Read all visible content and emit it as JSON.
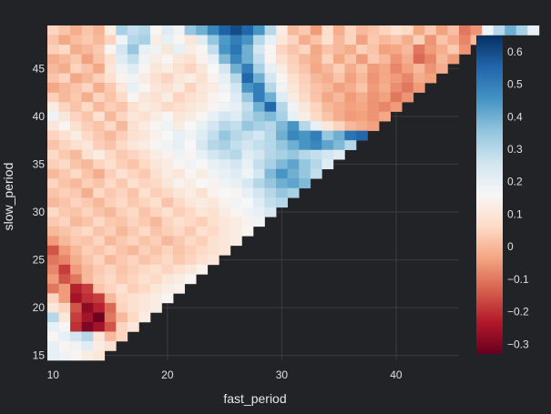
{
  "chart_data": {
    "type": "heatmap",
    "xlabel": "fast_period",
    "ylabel": "slow_period",
    "xlim": [
      10,
      45
    ],
    "ylim": [
      15,
      49
    ],
    "x_ticks": [
      10,
      20,
      30,
      40
    ],
    "y_ticks": [
      15,
      20,
      25,
      30,
      35,
      40,
      45
    ],
    "cell_rule": "z defined where fast_period < slow_period",
    "colorbar": {
      "range": [
        -0.33,
        0.65
      ],
      "ticks": [
        -0.3,
        -0.2,
        -0.1,
        0,
        0.1,
        0.2,
        0.3,
        0.4,
        0.5,
        0.6
      ],
      "tick_labels": [
        "−0.3",
        "−0.2",
        "−0.1",
        "0",
        "0.1",
        "0.2",
        "0.3",
        "0.4",
        "0.5",
        "0.6"
      ],
      "colorscale": [
        [
          0.0,
          "#67001f"
        ],
        [
          0.1,
          "#b2182b"
        ],
        [
          0.2,
          "#d6604d"
        ],
        [
          0.3,
          "#f4a582"
        ],
        [
          0.4,
          "#fddbc7"
        ],
        [
          0.5,
          "#f7f7f7"
        ],
        [
          0.6,
          "#d1e5f0"
        ],
        [
          0.7,
          "#92c5de"
        ],
        [
          0.8,
          "#4393c3"
        ],
        [
          0.9,
          "#2166ac"
        ],
        [
          1.0,
          "#053061"
        ]
      ]
    },
    "rows": [
      {
        "y": 49,
        "z": [
          0.05,
          0.02,
          -0.02,
          0.02,
          -0.01,
          0.12,
          0.32,
          0.28,
          0.3,
          0.15,
          0.22,
          0.18,
          0.35,
          0.4,
          0.48,
          0.56,
          0.6,
          0.55,
          0.45,
          0.3,
          0.12,
          0.0,
          0.03,
          -0.05,
          0.07,
          -0.02,
          0.05,
          0.0,
          0.02,
          0.05,
          0.08,
          0.06,
          -0.03,
          0.03,
          -0.04,
          0.01,
          -0.1,
          -0.06,
          0.18,
          0.3,
          0.4,
          0.32,
          0.2
        ]
      },
      {
        "y": 48,
        "z": [
          0.02,
          -0.03,
          0.01,
          0.03,
          0.0,
          0.05,
          0.18,
          0.3,
          0.32,
          0.12,
          0.2,
          0.15,
          0.1,
          0.22,
          0.35,
          0.44,
          0.5,
          0.45,
          0.3,
          0.2,
          0.1,
          0.05,
          -0.02,
          0.02,
          0.08,
          0.0,
          0.05,
          -0.04,
          0.03,
          0.0,
          0.02,
          -0.02,
          0.04,
          -0.06,
          0.02,
          -0.02,
          -0.08,
          0.0
        ]
      },
      {
        "y": 47,
        "z": [
          0.04,
          0.06,
          -0.02,
          0.0,
          0.03,
          0.15,
          0.25,
          0.35,
          0.2,
          0.18,
          0.1,
          0.2,
          0.12,
          0.15,
          0.28,
          0.45,
          0.52,
          0.4,
          0.25,
          0.15,
          0.05,
          0.02,
          0.05,
          -0.03,
          0.02,
          0.0,
          -0.02,
          0.04,
          0.02,
          -0.04,
          -0.03,
          0.0,
          -0.1,
          -0.05,
          -0.02,
          0.03,
          -0.06
        ]
      },
      {
        "y": 46,
        "z": [
          -0.02,
          0.0,
          0.03,
          -0.04,
          0.02,
          0.08,
          0.22,
          0.28,
          0.18,
          0.12,
          0.15,
          0.1,
          0.08,
          0.14,
          0.2,
          0.38,
          0.48,
          0.4,
          0.28,
          0.15,
          0.08,
          0.04,
          0.0,
          -0.02,
          0.05,
          -0.03,
          0.02,
          -0.05,
          0.03,
          0.0,
          -0.06,
          -0.02,
          -0.12,
          -0.08,
          0.0,
          -0.05
        ]
      },
      {
        "y": 45,
        "z": [
          0.0,
          -0.02,
          0.05,
          0.02,
          -0.03,
          0.1,
          0.18,
          0.22,
          0.15,
          0.1,
          0.12,
          0.08,
          0.05,
          0.1,
          0.16,
          0.25,
          0.4,
          0.5,
          0.32,
          0.2,
          0.12,
          0.05,
          0.02,
          -0.03,
          0.0,
          0.04,
          -0.02,
          0.02,
          -0.05,
          -0.03,
          -0.08,
          -0.04,
          0.0,
          -0.06,
          -0.02
        ]
      },
      {
        "y": 44,
        "z": [
          0.02,
          0.05,
          -0.03,
          0.0,
          0.04,
          0.08,
          0.14,
          0.18,
          0.12,
          0.08,
          0.05,
          0.1,
          0.12,
          0.08,
          0.14,
          0.2,
          0.3,
          0.55,
          0.4,
          0.25,
          0.15,
          0.08,
          0.04,
          0.0,
          -0.02,
          0.02,
          -0.04,
          0.0,
          -0.06,
          -0.03,
          -0.05,
          -0.08,
          -0.02,
          -0.04
        ]
      },
      {
        "y": 43,
        "z": [
          -0.03,
          0.0,
          0.02,
          0.05,
          -0.02,
          0.03,
          0.1,
          0.2,
          0.15,
          0.1,
          0.08,
          0.12,
          0.05,
          0.1,
          0.12,
          0.18,
          0.25,
          0.45,
          0.5,
          0.3,
          0.18,
          0.1,
          0.05,
          0.02,
          0.0,
          -0.04,
          -0.02,
          0.02,
          -0.05,
          -0.02,
          -0.07,
          -0.1,
          -0.05
        ]
      },
      {
        "y": 42,
        "z": [
          0.04,
          0.0,
          0.03,
          -0.02,
          0.05,
          0.02,
          0.06,
          0.15,
          0.1,
          0.08,
          0.12,
          0.05,
          0.08,
          0.1,
          0.14,
          0.16,
          0.22,
          0.35,
          0.5,
          0.4,
          0.22,
          0.12,
          0.06,
          0.02,
          -0.03,
          0.0,
          -0.05,
          -0.02,
          -0.06,
          -0.04,
          -0.1,
          -0.06
        ]
      },
      {
        "y": 41,
        "z": [
          0.12,
          0.05,
          0.02,
          0.06,
          0.0,
          0.04,
          0.02,
          0.08,
          0.12,
          0.1,
          0.06,
          0.08,
          0.1,
          0.12,
          0.15,
          0.18,
          0.2,
          0.28,
          0.4,
          0.55,
          0.3,
          0.18,
          0.1,
          0.05,
          0.0,
          -0.02,
          -0.04,
          -0.03,
          -0.06,
          -0.08,
          -0.05
        ]
      },
      {
        "y": 40,
        "z": [
          0.18,
          0.1,
          0.05,
          0.02,
          0.08,
          0.0,
          0.05,
          0.1,
          0.08,
          0.12,
          0.15,
          0.1,
          0.12,
          0.15,
          0.2,
          0.25,
          0.22,
          0.3,
          0.35,
          0.38,
          0.32,
          0.2,
          0.12,
          0.06,
          0.02,
          -0.02,
          -0.05,
          -0.04,
          -0.06,
          -0.03
        ]
      },
      {
        "y": 39,
        "z": [
          0.1,
          0.15,
          0.08,
          0.04,
          0.02,
          0.06,
          0.0,
          0.08,
          0.12,
          0.15,
          0.18,
          0.12,
          0.16,
          0.2,
          0.25,
          0.3,
          0.28,
          0.35,
          0.32,
          0.3,
          0.38,
          0.45,
          0.3,
          0.2,
          0.1,
          0.05,
          0.0,
          -0.02,
          -0.04
        ]
      },
      {
        "y": 38,
        "z": [
          0.05,
          0.08,
          0.12,
          0.06,
          0.03,
          0.0,
          0.04,
          0.08,
          0.1,
          0.14,
          0.16,
          0.2,
          0.18,
          0.22,
          0.28,
          0.35,
          0.3,
          0.28,
          0.25,
          0.3,
          0.4,
          0.48,
          0.45,
          0.5,
          0.35,
          0.4,
          0.52,
          0.55
        ]
      },
      {
        "y": 37,
        "z": [
          0.02,
          0.05,
          0.08,
          0.1,
          0.04,
          0.02,
          0.06,
          0.1,
          0.12,
          0.15,
          0.18,
          0.2,
          0.16,
          0.24,
          0.3,
          0.32,
          0.28,
          0.25,
          0.28,
          0.3,
          0.35,
          0.4,
          0.45,
          0.48,
          0.42,
          0.38,
          0.3
        ]
      },
      {
        "y": 36,
        "z": [
          0.06,
          0.03,
          0.0,
          0.08,
          0.12,
          0.06,
          0.03,
          0.05,
          0.08,
          0.12,
          0.14,
          0.18,
          0.15,
          0.2,
          0.25,
          0.28,
          0.3,
          0.22,
          0.25,
          0.3,
          0.32,
          0.35,
          0.3,
          0.28,
          0.25,
          0.22
        ]
      },
      {
        "y": 35,
        "z": [
          0.04,
          0.06,
          0.02,
          0.0,
          0.05,
          0.08,
          0.04,
          0.02,
          0.06,
          0.1,
          0.12,
          0.15,
          0.18,
          0.16,
          0.2,
          0.22,
          0.25,
          0.2,
          0.28,
          0.32,
          0.38,
          0.42,
          0.35,
          0.3,
          0.22
        ]
      },
      {
        "y": 34,
        "z": [
          0.0,
          0.03,
          0.06,
          0.02,
          -0.02,
          0.04,
          0.08,
          0.05,
          0.03,
          0.08,
          0.12,
          0.1,
          0.15,
          0.12,
          0.18,
          0.2,
          0.22,
          0.18,
          0.25,
          0.38,
          0.45,
          0.4,
          0.35,
          0.28
        ]
      },
      {
        "y": 33,
        "z": [
          0.05,
          0.02,
          0.0,
          0.04,
          0.02,
          0.06,
          0.03,
          0.08,
          0.05,
          0.06,
          0.1,
          0.14,
          0.12,
          0.16,
          0.14,
          0.18,
          0.2,
          0.24,
          0.3,
          0.35,
          0.4,
          0.42,
          0.38
        ]
      },
      {
        "y": 32,
        "z": [
          0.02,
          0.04,
          0.03,
          -0.02,
          0.06,
          0.03,
          0.05,
          0.02,
          0.08,
          0.04,
          0.06,
          0.1,
          0.12,
          0.08,
          0.14,
          0.16,
          0.15,
          0.2,
          0.25,
          0.3,
          0.35,
          0.32
        ]
      },
      {
        "y": 31,
        "z": [
          0.0,
          0.02,
          0.05,
          0.03,
          0.0,
          0.04,
          0.06,
          0.03,
          0.05,
          0.08,
          0.02,
          0.06,
          0.1,
          0.12,
          0.1,
          0.14,
          0.18,
          0.16,
          0.22,
          0.28,
          0.3
        ]
      },
      {
        "y": 30,
        "z": [
          0.06,
          0.03,
          0.02,
          0.05,
          0.02,
          0.0,
          0.04,
          0.06,
          0.02,
          0.05,
          0.08,
          0.04,
          0.06,
          0.1,
          0.08,
          0.12,
          0.15,
          0.18,
          0.2,
          0.24
        ]
      },
      {
        "y": 29,
        "z": [
          0.03,
          0.05,
          0.0,
          0.02,
          0.06,
          0.03,
          0.02,
          0.05,
          0.03,
          0.0,
          0.05,
          0.08,
          0.06,
          0.04,
          0.08,
          0.1,
          0.12,
          0.14,
          0.18
        ]
      },
      {
        "y": 28,
        "z": [
          0.0,
          0.02,
          0.04,
          0.06,
          0.02,
          0.04,
          0.0,
          0.03,
          0.06,
          0.02,
          0.04,
          0.06,
          0.03,
          0.08,
          0.06,
          0.1,
          0.12,
          0.15
        ]
      },
      {
        "y": 27,
        "z": [
          -0.05,
          0.0,
          0.03,
          0.02,
          0.05,
          0.0,
          0.03,
          0.05,
          0.02,
          0.04,
          0.0,
          0.03,
          0.06,
          0.04,
          0.08,
          0.1,
          0.12
        ]
      },
      {
        "y": 26,
        "z": [
          -0.15,
          -0.05,
          0.0,
          0.04,
          0.02,
          0.05,
          0.02,
          0.0,
          0.04,
          0.02,
          0.05,
          0.02,
          0.04,
          0.06,
          0.08,
          0.1
        ]
      },
      {
        "y": 25,
        "z": [
          -0.1,
          -0.08,
          -0.02,
          0.02,
          0.05,
          0.0,
          0.03,
          0.05,
          0.02,
          0.04,
          0.06,
          0.03,
          0.05,
          0.08,
          0.1
        ]
      },
      {
        "y": 24,
        "z": [
          -0.08,
          -0.18,
          -0.05,
          0.0,
          0.03,
          0.05,
          0.02,
          0.04,
          0.06,
          0.08,
          0.05,
          0.08,
          0.1,
          0.14
        ]
      },
      {
        "y": 23,
        "z": [
          -0.05,
          -0.15,
          -0.1,
          0.0,
          0.04,
          0.06,
          0.03,
          0.05,
          0.08,
          0.06,
          0.1,
          0.12,
          0.15
        ]
      },
      {
        "y": 22,
        "z": [
          -0.1,
          -0.05,
          -0.22,
          -0.18,
          0.02,
          0.05,
          0.08,
          0.04,
          0.06,
          0.1,
          0.12,
          0.14
        ]
      },
      {
        "y": 21,
        "z": [
          0.05,
          -0.05,
          -0.25,
          -0.2,
          -0.18,
          0.0,
          0.06,
          0.08,
          0.1,
          0.12,
          0.15
        ]
      },
      {
        "y": 20,
        "z": [
          0.1,
          0.05,
          -0.15,
          -0.28,
          -0.22,
          -0.12,
          0.05,
          0.08,
          0.1,
          0.12
        ]
      },
      {
        "y": 19,
        "z": [
          0.3,
          0.1,
          -0.18,
          -0.25,
          -0.32,
          -0.1,
          0.0,
          0.06,
          0.12
        ]
      },
      {
        "y": 18,
        "z": [
          0.2,
          0.15,
          -0.2,
          -0.3,
          -0.25,
          -0.15,
          0.05,
          0.1
        ]
      },
      {
        "y": 17,
        "z": [
          0.15,
          0.2,
          0.25,
          0.3,
          0.1,
          0.0,
          0.05
        ]
      },
      {
        "y": 16,
        "z": [
          0.2,
          0.15,
          0.18,
          0.22,
          0.12,
          0.08
        ]
      },
      {
        "y": 15,
        "z": [
          0.2,
          0.18,
          0.15,
          0.12,
          0.1
        ]
      }
    ]
  }
}
